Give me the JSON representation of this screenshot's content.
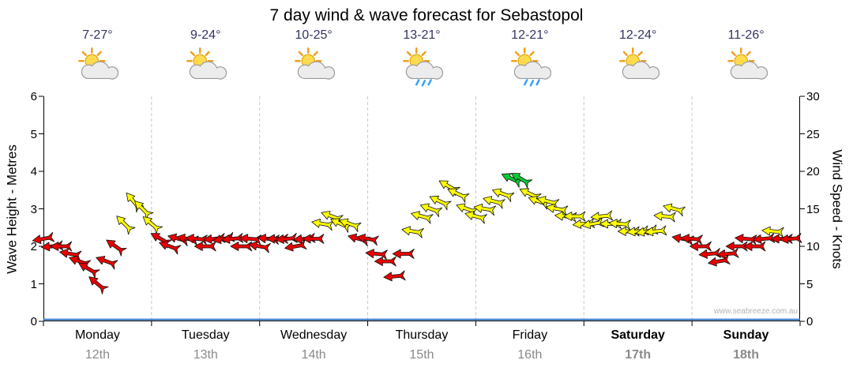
{
  "title": "7 day wind & wave forecast for Sebastopol",
  "watermark": "www.seabreeze.com.au",
  "day_headers": [
    {
      "name": "Monday",
      "date": "12th",
      "temp": "7-27°",
      "icon": "sun-cloud",
      "bold": false
    },
    {
      "name": "Tuesday",
      "date": "13th",
      "temp": "9-24°",
      "icon": "sun-cloud",
      "bold": false
    },
    {
      "name": "Wednesday",
      "date": "14th",
      "temp": "10-25°",
      "icon": "sun-cloud",
      "bold": false
    },
    {
      "name": "Thursday",
      "date": "15th",
      "temp": "13-21°",
      "icon": "sun-cloud-rain",
      "bold": false
    },
    {
      "name": "Friday",
      "date": "16th",
      "temp": "12-21°",
      "icon": "sun-cloud-rain",
      "bold": false
    },
    {
      "name": "Saturday",
      "date": "17th",
      "temp": "12-24°",
      "icon": "sun-cloud",
      "bold": true
    },
    {
      "name": "Sunday",
      "date": "18th",
      "temp": "11-26°",
      "icon": "sun-cloud",
      "bold": true
    }
  ],
  "axes": {
    "left_label": "Wave Height - Metres",
    "right_label": "Wind Speed - Knots",
    "left_ticks": [
      0,
      1,
      2,
      3,
      4,
      5,
      6
    ],
    "right_ticks": [
      0,
      5,
      10,
      15,
      20,
      25,
      30
    ],
    "left_range": [
      0,
      6
    ],
    "right_range": [
      0,
      30
    ]
  },
  "colors": {
    "temp_text": "#333366",
    "day_name": "#000000",
    "day_date": "#8a8a8a",
    "grid": "#c8c8c8",
    "axis": "#000000",
    "wave_line": "#3377cc",
    "arrow_outline": "#111111",
    "arrow_red": "#e80000",
    "arrow_yellow": "#ffff00",
    "arrow_green": "#00cc33",
    "watermark": "#b4b4b4"
  },
  "chart_data": {
    "type": "scatter",
    "style": "wind-arrows",
    "title": "7 day wind & wave forecast for Sebastopol",
    "x_axis": {
      "unit": "hours from Monday 00:00",
      "start": 0,
      "step": 2,
      "count": 84,
      "range": [
        0,
        168
      ],
      "day_boundaries_hours": [
        0,
        24,
        48,
        72,
        96,
        120,
        144,
        168
      ],
      "day_labels": [
        "Monday 12th",
        "Tuesday 13th",
        "Wednesday 14th",
        "Thursday 15th",
        "Friday 16th",
        "Saturday 17th",
        "Sunday 18th"
      ]
    },
    "y_left": {
      "label": "Wave Height - Metres",
      "range": [
        0,
        6
      ],
      "ticks": [
        0,
        1,
        2,
        3,
        4,
        5,
        6
      ]
    },
    "y_right": {
      "label": "Wind Speed - Knots",
      "range": [
        0,
        30
      ],
      "ticks": [
        0,
        5,
        10,
        15,
        20,
        25,
        30
      ]
    },
    "wind_knots": [
      11,
      10,
      10,
      9,
      8,
      7,
      5,
      8,
      10,
      13,
      16,
      15,
      13,
      11,
      10,
      11,
      11,
      11,
      10,
      11,
      11,
      11,
      10,
      11,
      10,
      11,
      11,
      11,
      10,
      11,
      11,
      13,
      14,
      13,
      13,
      11,
      11,
      9,
      8,
      6,
      9,
      12,
      14,
      15,
      16,
      18,
      17,
      15,
      14,
      15,
      16,
      17,
      19,
      19,
      17,
      16,
      16,
      15,
      14,
      14,
      13,
      13,
      14,
      13,
      13,
      12,
      12,
      12,
      12,
      14,
      15,
      11,
      11,
      10,
      9,
      8,
      9,
      10,
      11,
      10,
      11,
      12,
      11,
      11
    ],
    "wind_arrow_dir_deg": [
      170,
      175,
      180,
      190,
      200,
      210,
      220,
      200,
      215,
      225,
      230,
      225,
      220,
      210,
      200,
      195,
      190,
      185,
      180,
      175,
      170,
      175,
      180,
      185,
      190,
      185,
      180,
      175,
      170,
      175,
      180,
      190,
      200,
      205,
      200,
      195,
      190,
      185,
      180,
      175,
      180,
      190,
      195,
      200,
      205,
      210,
      205,
      200,
      195,
      190,
      195,
      200,
      205,
      210,
      205,
      200,
      195,
      190,
      185,
      180,
      175,
      170,
      175,
      180,
      185,
      180,
      175,
      170,
      175,
      185,
      195,
      190,
      185,
      180,
      175,
      170,
      175,
      180,
      185,
      180,
      175,
      185,
      180,
      175
    ],
    "wave_height_m": 0.05,
    "speed_color_rules": [
      {
        "max_knots": 11,
        "name": "red",
        "color": "#e80000"
      },
      {
        "max_knots": 18,
        "name": "yellow",
        "color": "#ffff00"
      },
      {
        "max_knots": 30,
        "name": "green",
        "color": "#00cc33"
      }
    ]
  }
}
